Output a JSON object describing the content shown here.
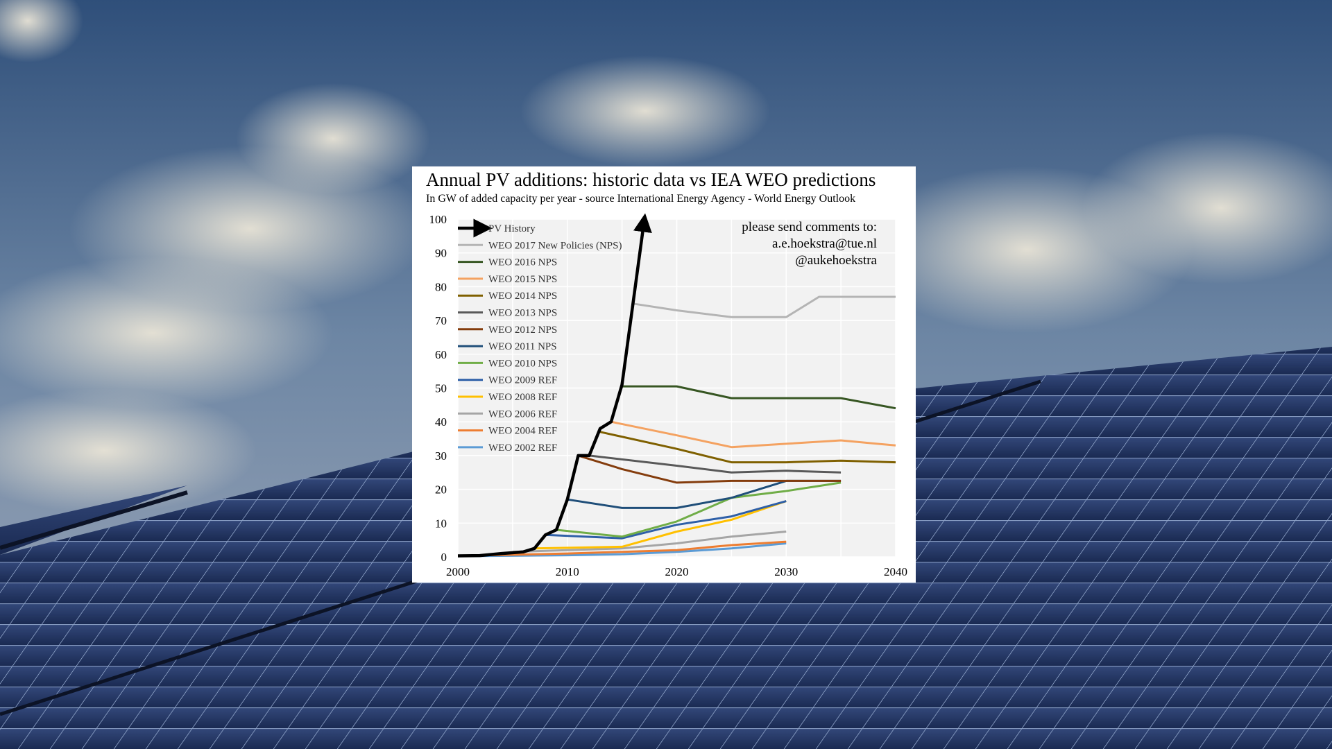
{
  "chart_data": {
    "type": "line",
    "title": "Annual PV additions: historic data vs IEA WEO predictions",
    "subtitle": "In GW of added capacity per year - source International Energy Agency - World Energy Outlook",
    "xlabel": "",
    "ylabel": "",
    "xlim": [
      2000,
      2040
    ],
    "ylim": [
      0,
      100
    ],
    "x_ticks": [
      2000,
      2010,
      2020,
      2030,
      2040
    ],
    "y_ticks": [
      0,
      10,
      20,
      30,
      40,
      50,
      60,
      70,
      80,
      90,
      100
    ],
    "grid": true,
    "legend_position": "top-left",
    "annotations": [
      "please send comments to:",
      "a.e.hoekstra@tue.nl",
      "@aukehoekstra"
    ],
    "series": [
      {
        "name": "PV History",
        "color": "#000000",
        "arrow": true,
        "x": [
          2000,
          2002,
          2004,
          2006,
          2007,
          2008,
          2009,
          2010,
          2011,
          2012,
          2013,
          2014,
          2015,
          2016,
          2017
        ],
        "y": [
          0.3,
          0.4,
          1.0,
          1.5,
          2.5,
          6.5,
          8,
          17,
          30,
          30,
          38,
          40,
          51,
          75,
          99
        ]
      },
      {
        "name": "WEO 2017 New Policies (NPS)",
        "color": "#b4b4b4",
        "x": [
          2016,
          2020,
          2025,
          2030,
          2033,
          2040
        ],
        "y": [
          75,
          73,
          71,
          71,
          77,
          77
        ]
      },
      {
        "name": "WEO 2016 NPS",
        "color": "#375623",
        "x": [
          2015,
          2020,
          2025,
          2030,
          2035,
          2040
        ],
        "y": [
          50.5,
          50.5,
          47,
          47,
          47,
          44
        ]
      },
      {
        "name": "WEO 2015 NPS",
        "color": "#f4a261",
        "x": [
          2014,
          2020,
          2025,
          2030,
          2035,
          2040
        ],
        "y": [
          40,
          36,
          32.5,
          33.5,
          34.5,
          33
        ]
      },
      {
        "name": "WEO 2014 NPS",
        "color": "#7f6000",
        "x": [
          2013,
          2020,
          2025,
          2030,
          2035,
          2040
        ],
        "y": [
          37,
          32,
          28,
          28,
          28.5,
          28
        ]
      },
      {
        "name": "WEO 2013 NPS",
        "color": "#595959",
        "x": [
          2012,
          2020,
          2025,
          2030,
          2035
        ],
        "y": [
          30,
          27,
          25,
          25.5,
          25
        ]
      },
      {
        "name": "WEO 2012 NPS",
        "color": "#843c0c",
        "x": [
          2011,
          2015,
          2020,
          2025,
          2030,
          2035
        ],
        "y": [
          30,
          26,
          22,
          22.5,
          22.5,
          22.5
        ]
      },
      {
        "name": "WEO 2011 NPS",
        "color": "#1f4e79",
        "x": [
          2010,
          2015,
          2020,
          2025,
          2030,
          2035
        ],
        "y": [
          17,
          14.5,
          14.5,
          17.5,
          22.5,
          22.5
        ]
      },
      {
        "name": "WEO 2010 NPS",
        "color": "#70ad47",
        "x": [
          2009,
          2015,
          2020,
          2025,
          2030,
          2035
        ],
        "y": [
          8,
          6,
          10.5,
          17.5,
          19.5,
          22
        ]
      },
      {
        "name": "WEO 2009 REF",
        "color": "#2e5fa7",
        "x": [
          2008,
          2015,
          2020,
          2025,
          2030
        ],
        "y": [
          6.5,
          5.5,
          9.5,
          12,
          16.5
        ]
      },
      {
        "name": "WEO 2008 REF",
        "color": "#ffc000",
        "x": [
          2007,
          2015,
          2020,
          2025,
          2030
        ],
        "y": [
          2.5,
          3,
          7.5,
          11,
          16.5
        ]
      },
      {
        "name": "WEO 2006 REF",
        "color": "#a5a5a5",
        "x": [
          2005,
          2015,
          2020,
          2025,
          2030
        ],
        "y": [
          1.5,
          2.5,
          4,
          6,
          7.5
        ]
      },
      {
        "name": "WEO 2004 REF",
        "color": "#ed7d31",
        "x": [
          2003,
          2010,
          2015,
          2020,
          2025,
          2030
        ],
        "y": [
          0.5,
          1,
          1.5,
          2,
          3.5,
          4.5
        ]
      },
      {
        "name": "WEO 2002 REF",
        "color": "#5b9bd5",
        "x": [
          2000,
          2010,
          2015,
          2020,
          2025,
          2030
        ],
        "y": [
          0.2,
          0.5,
          0.8,
          1.5,
          2.5,
          4
        ]
      }
    ]
  }
}
